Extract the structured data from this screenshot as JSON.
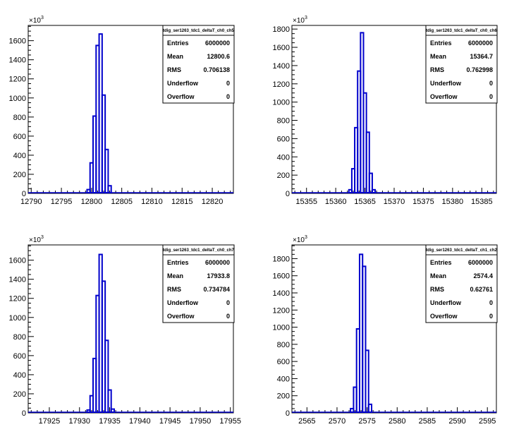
{
  "chart_data": [
    {
      "type": "histogram",
      "title": "tdig_ser1263_tdc1_deltaT_ch0_ch5",
      "multiplier_label": "×10",
      "multiplier_exp": "3",
      "xlim": [
        12789.5,
        12823.5
      ],
      "ylim": [
        0,
        1760
      ],
      "x_ticks": [
        "12790",
        "12795",
        "12800",
        "12805",
        "12810",
        "12815",
        "12820"
      ],
      "x_tick_values": [
        12790,
        12795,
        12800,
        12805,
        12810,
        12815,
        12820
      ],
      "y_ticks": [
        "0",
        "200",
        "400",
        "600",
        "800",
        "1000",
        "1200",
        "1400",
        "1600"
      ],
      "y_tick_values": [
        0,
        200,
        400,
        600,
        800,
        1000,
        1200,
        1400,
        1600
      ],
      "bins": [
        {
          "x0": 12798.75,
          "x1": 12799.25,
          "y": 0
        },
        {
          "x0": 12799.25,
          "x1": 12799.75,
          "y": 40
        },
        {
          "x0": 12799.75,
          "x1": 12800.25,
          "y": 320
        },
        {
          "x0": 12800.25,
          "x1": 12800.75,
          "y": 810
        },
        {
          "x0": 12800.75,
          "x1": 12801.25,
          "y": 1550
        },
        {
          "x0": 12801.25,
          "x1": 12801.75,
          "y": 1670
        },
        {
          "x0": 12801.75,
          "x1": 12802.25,
          "y": 1030
        },
        {
          "x0": 12802.25,
          "x1": 12802.75,
          "y": 460
        },
        {
          "x0": 12802.75,
          "x1": 12803.25,
          "y": 80
        },
        {
          "x0": 12803.25,
          "x1": 12803.75,
          "y": 0
        }
      ],
      "stats": [
        {
          "label": "Entries",
          "value": "6000000"
        },
        {
          "label": "Mean",
          "value": "12800.6"
        },
        {
          "label": "RMS",
          "value": "0.706138"
        },
        {
          "label": "Underflow",
          "value": "0"
        },
        {
          "label": "Overflow",
          "value": "0"
        }
      ]
    },
    {
      "type": "histogram",
      "title": "tdig_ser1263_tdc1_deltaT_ch0_ch6",
      "multiplier_label": "×10",
      "multiplier_exp": "3",
      "xlim": [
        15352.5,
        15387.5
      ],
      "ylim": [
        0,
        1840
      ],
      "x_ticks": [
        "15355",
        "15360",
        "15365",
        "15370",
        "15375",
        "15380",
        "15385"
      ],
      "x_tick_values": [
        15355,
        15360,
        15365,
        15370,
        15375,
        15380,
        15385
      ],
      "y_ticks": [
        "0",
        "200",
        "400",
        "600",
        "800",
        "1000",
        "1200",
        "1400",
        "1600",
        "1800"
      ],
      "y_tick_values": [
        0,
        200,
        400,
        600,
        800,
        1000,
        1200,
        1400,
        1600,
        1800
      ],
      "bins": [
        {
          "x0": 15361.75,
          "x1": 15362.25,
          "y": 0
        },
        {
          "x0": 15362.25,
          "x1": 15362.75,
          "y": 40
        },
        {
          "x0": 15362.75,
          "x1": 15363.25,
          "y": 270
        },
        {
          "x0": 15363.25,
          "x1": 15363.75,
          "y": 720
        },
        {
          "x0": 15363.75,
          "x1": 15364.25,
          "y": 1340
        },
        {
          "x0": 15364.25,
          "x1": 15364.75,
          "y": 1760
        },
        {
          "x0": 15364.75,
          "x1": 15365.25,
          "y": 1100
        },
        {
          "x0": 15365.25,
          "x1": 15365.75,
          "y": 670
        },
        {
          "x0": 15365.75,
          "x1": 15366.25,
          "y": 220
        },
        {
          "x0": 15366.25,
          "x1": 15366.75,
          "y": 40
        },
        {
          "x0": 15366.75,
          "x1": 15367.25,
          "y": 0
        }
      ],
      "stats": [
        {
          "label": "Entries",
          "value": "6000000"
        },
        {
          "label": "Mean",
          "value": "15364.7"
        },
        {
          "label": "RMS",
          "value": "0.762998"
        },
        {
          "label": "Underflow",
          "value": "0"
        },
        {
          "label": "Overflow",
          "value": "0"
        }
      ]
    },
    {
      "type": "histogram",
      "title": "tdig_ser1263_tdc1_deltaT_ch0_ch7",
      "multiplier_label": "×10",
      "multiplier_exp": "3",
      "xlim": [
        17921.5,
        17955.5
      ],
      "ylim": [
        0,
        1760
      ],
      "x_ticks": [
        "17925",
        "17930",
        "17935",
        "17940",
        "17945",
        "17950",
        "17955"
      ],
      "x_tick_values": [
        17925,
        17930,
        17935,
        17940,
        17945,
        17950,
        17955
      ],
      "y_ticks": [
        "0",
        "200",
        "400",
        "600",
        "800",
        "1000",
        "1200",
        "1400",
        "1600"
      ],
      "y_tick_values": [
        0,
        200,
        400,
        600,
        800,
        1000,
        1200,
        1400,
        1600
      ],
      "bins": [
        {
          "x0": 17930.75,
          "x1": 17931.25,
          "y": 0
        },
        {
          "x0": 17931.25,
          "x1": 17931.75,
          "y": 30
        },
        {
          "x0": 17931.75,
          "x1": 17932.25,
          "y": 180
        },
        {
          "x0": 17932.25,
          "x1": 17932.75,
          "y": 570
        },
        {
          "x0": 17932.75,
          "x1": 17933.25,
          "y": 1230
        },
        {
          "x0": 17933.25,
          "x1": 17933.75,
          "y": 1660
        },
        {
          "x0": 17933.75,
          "x1": 17934.25,
          "y": 1380
        },
        {
          "x0": 17934.25,
          "x1": 17934.75,
          "y": 760
        },
        {
          "x0": 17934.75,
          "x1": 17935.25,
          "y": 240
        },
        {
          "x0": 17935.25,
          "x1": 17935.75,
          "y": 40
        },
        {
          "x0": 17935.75,
          "x1": 17936.25,
          "y": 0
        }
      ],
      "stats": [
        {
          "label": "Entries",
          "value": "6000000"
        },
        {
          "label": "Mean",
          "value": "17933.8"
        },
        {
          "label": "RMS",
          "value": "0.734784"
        },
        {
          "label": "Underflow",
          "value": "0"
        },
        {
          "label": "Overflow",
          "value": "0"
        }
      ]
    },
    {
      "type": "histogram",
      "title": "tdig_ser1263_tdc1_deltaT_ch1_ch2",
      "multiplier_label": "×10",
      "multiplier_exp": "3",
      "xlim": [
        2562.5,
        2596.5
      ],
      "ylim": [
        0,
        1960
      ],
      "x_ticks": [
        "2565",
        "2570",
        "2575",
        "2580",
        "2585",
        "2590",
        "2595"
      ],
      "x_tick_values": [
        2565,
        2570,
        2575,
        2580,
        2585,
        2590,
        2595
      ],
      "y_ticks": [
        "0",
        "200",
        "400",
        "600",
        "800",
        "1000",
        "1200",
        "1400",
        "1600",
        "1800"
      ],
      "y_tick_values": [
        0,
        200,
        400,
        600,
        800,
        1000,
        1200,
        1400,
        1600,
        1800
      ],
      "bins": [
        {
          "x0": 2571.75,
          "x1": 2572.25,
          "y": 0
        },
        {
          "x0": 2572.25,
          "x1": 2572.75,
          "y": 50
        },
        {
          "x0": 2572.75,
          "x1": 2573.25,
          "y": 300
        },
        {
          "x0": 2573.25,
          "x1": 2573.75,
          "y": 980
        },
        {
          "x0": 2573.75,
          "x1": 2574.25,
          "y": 1850
        },
        {
          "x0": 2574.25,
          "x1": 2574.75,
          "y": 1710
        },
        {
          "x0": 2574.75,
          "x1": 2575.25,
          "y": 730
        },
        {
          "x0": 2575.25,
          "x1": 2575.75,
          "y": 100
        },
        {
          "x0": 2575.75,
          "x1": 2576.25,
          "y": 0
        }
      ],
      "stats": [
        {
          "label": "Entries",
          "value": "6000000"
        },
        {
          "label": "Mean",
          "value": "2574.4"
        },
        {
          "label": "RMS",
          "value": "0.62761"
        },
        {
          "label": "Underflow",
          "value": "0"
        },
        {
          "label": "Overflow",
          "value": "0"
        }
      ]
    }
  ],
  "colors": {
    "histogram_line": "#0000cc",
    "axis": "#000000",
    "background": "#ffffff"
  }
}
